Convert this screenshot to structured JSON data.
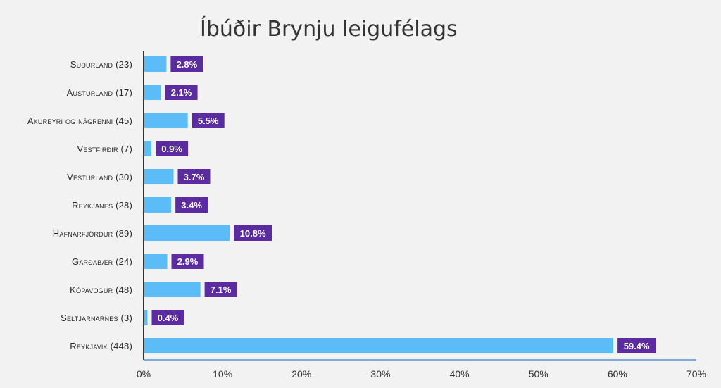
{
  "colors": {
    "background": "#f2f2f2",
    "bar": "#5bbcf7",
    "label_box": "#5b2ca0",
    "axis_left": "#333333",
    "axis_bottom": "#5b8fd6"
  },
  "chart_data": {
    "type": "bar",
    "orientation": "horizontal",
    "title": "Íbúðir Brynju leigufélags",
    "categories": [
      "Suðurland (23)",
      "Austurland (17)",
      "Akureyri og nágrenni (45)",
      "Vestfirðir (7)",
      "Vesturland (30)",
      "Reykjanes (28)",
      "Hafnarfjörður (89)",
      "Garðabær (24)",
      "Kópavogur (48)",
      "Seltjarnarnes (3)",
      "Reykjavík (448)"
    ],
    "values": [
      2.8,
      2.1,
      5.5,
      0.9,
      3.7,
      3.4,
      10.8,
      2.9,
      7.1,
      0.4,
      59.4
    ],
    "data_labels": [
      "2.8%",
      "2.1%",
      "5.5%",
      "0.9%",
      "3.7%",
      "3.4%",
      "10.8%",
      "2.9%",
      "7.1%",
      "0.4%",
      "59.4%"
    ],
    "xlim": [
      0,
      70
    ],
    "x_ticks": [
      0,
      10,
      20,
      30,
      40,
      50,
      60,
      70
    ],
    "x_tick_labels": [
      "0%",
      "10%",
      "20%",
      "30%",
      "40%",
      "50%",
      "60%",
      "70%"
    ],
    "xlabel": "",
    "ylabel": "",
    "grid": false,
    "legend": "none"
  }
}
